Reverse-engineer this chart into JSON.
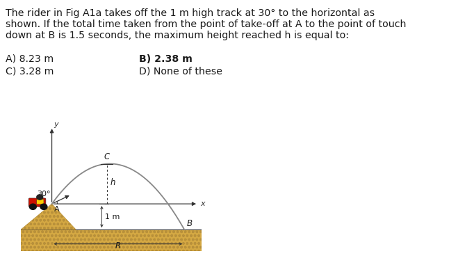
{
  "text_line1": "The rider in Fig A1a takes off the 1 m high track at 30° to the horizontal as",
  "text_line2": "shown. If the total time taken from the point of take-off at A to the point of touch",
  "text_line3": "down at B is 1.5 seconds, the maximum height reached h is equal to:",
  "answer_A": "A) 8.23 m",
  "answer_B": "B) 2.38 m",
  "answer_C": "C) 3.28 m",
  "answer_D": "D) None of these",
  "fig_bg": "#fdf8e1",
  "ground_color": "#d4a843",
  "ground_edge": "#b8903a",
  "text_color": "#1a1a1a",
  "curve_color": "#888888",
  "axis_color": "#333333",
  "angle_label": "30°",
  "label_C": "C",
  "label_h": "h",
  "label_A": "A",
  "label_B": "B",
  "label_x": "x",
  "label_y": "y",
  "label_1m": "1 m",
  "label_R": "R",
  "fig_width": 6.46,
  "fig_height": 3.71,
  "dpi": 100
}
